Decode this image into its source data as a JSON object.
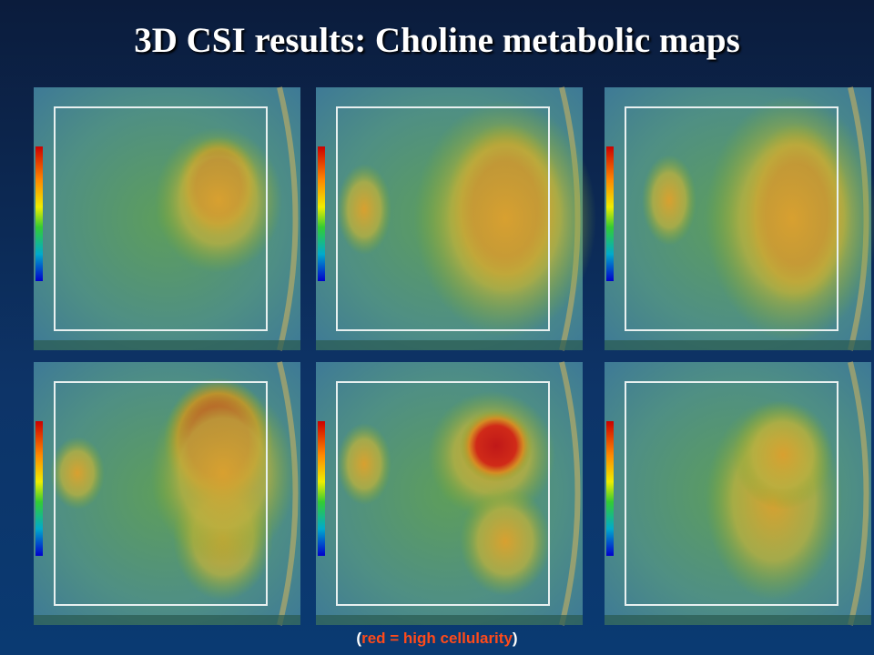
{
  "header": {
    "title": "3D CSI results: Choline metabolic maps"
  },
  "caption": {
    "open": "(",
    "text": "red = high cellularity",
    "close": ")"
  }
}
